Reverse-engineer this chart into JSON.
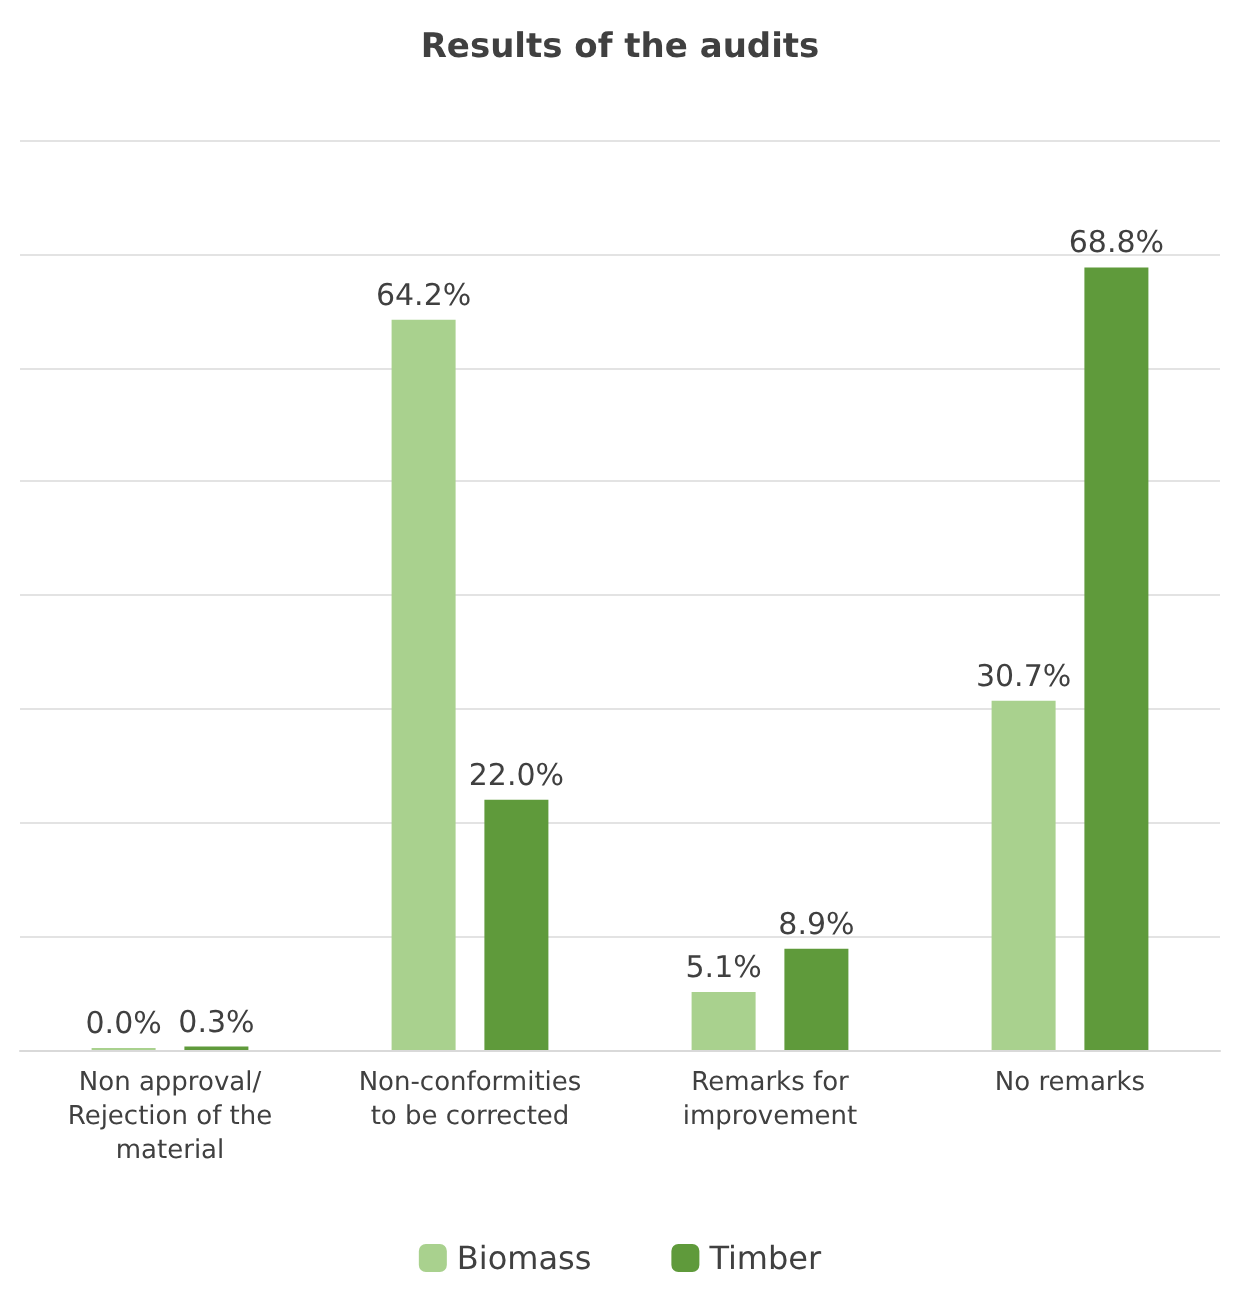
{
  "chart_data": {
    "type": "bar",
    "title": "Results of the audits",
    "categories": [
      "Non approval/\nRejection of the\nmaterial",
      "Non-conformities\nto be corrected",
      "Remarks for\nimprovement",
      "No remarks"
    ],
    "series": [
      {
        "name": "Biomass",
        "color": "#a9d18e",
        "values": [
          0.0,
          64.2,
          5.1,
          30.7
        ],
        "value_labels": [
          "0.0%",
          "64.2%",
          "5.1%",
          "30.7%"
        ]
      },
      {
        "name": "Timber",
        "color": "#5f9a3b",
        "values": [
          0.3,
          22.0,
          8.9,
          68.8
        ],
        "value_labels": [
          "0.3%",
          "22.0%",
          "8.9%",
          "68.8%"
        ]
      }
    ],
    "ylim": [
      0,
      80
    ],
    "yticks": [
      {
        "value": 0,
        "label": null
      },
      {
        "value": 10,
        "label": null
      },
      {
        "value": 20,
        "label": null
      },
      {
        "value": 30,
        "label": null
      },
      {
        "value": 40,
        "label": null
      },
      {
        "value": 50,
        "label": null
      },
      {
        "value": 60,
        "label": null
      },
      {
        "value": 70,
        "label": null
      },
      {
        "value": 80,
        "label": null
      }
    ],
    "tick_labels": "x",
    "grid": "y",
    "legend": "bottom"
  }
}
